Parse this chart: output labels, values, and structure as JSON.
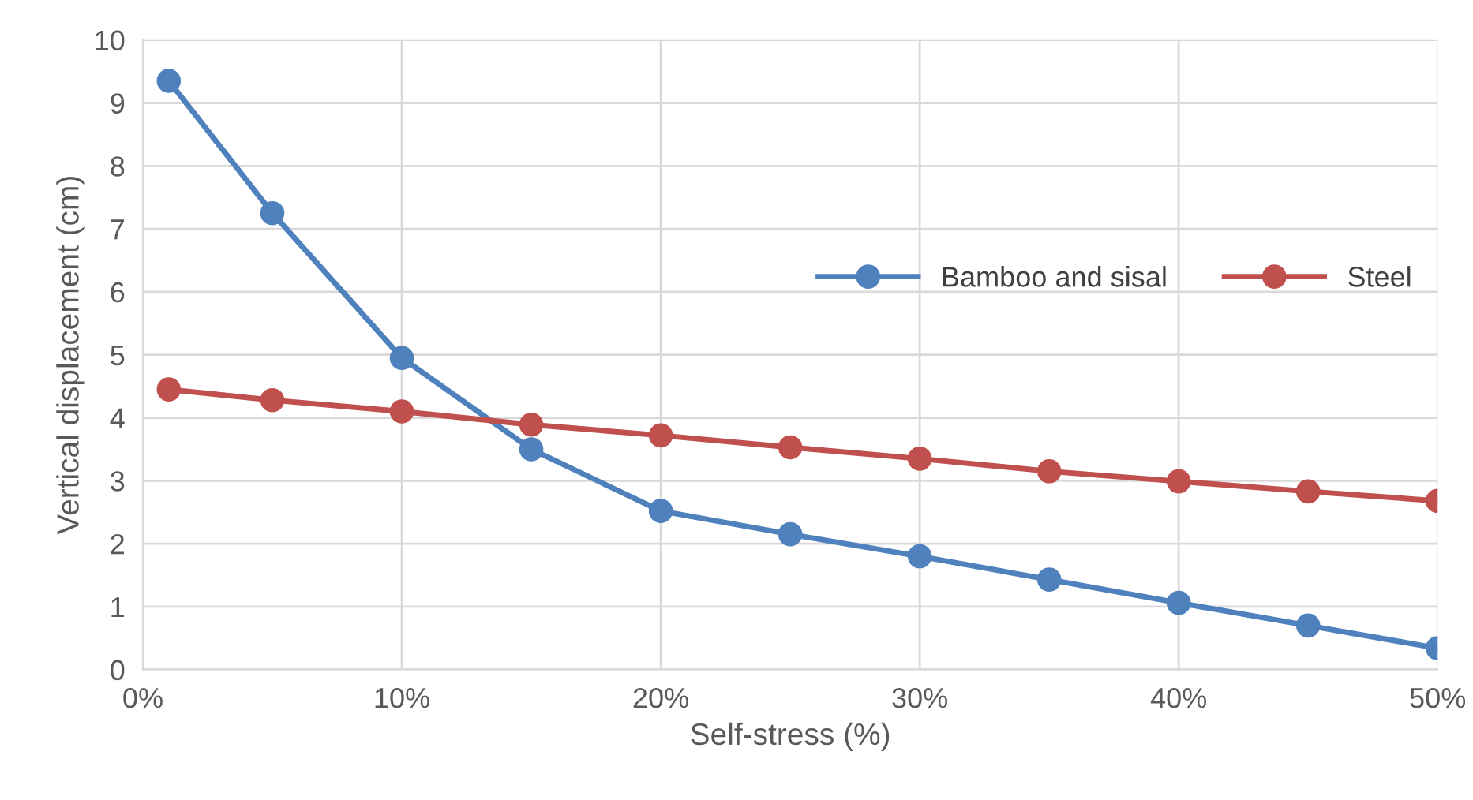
{
  "chart_data": {
    "type": "line",
    "xlabel": "Self-stress (%)",
    "ylabel": "Vertical displacement (cm)",
    "x": [
      1,
      5,
      10,
      15,
      20,
      25,
      30,
      35,
      40,
      45,
      50
    ],
    "series": [
      {
        "name": "Bamboo and sisal",
        "color": "#4f81bd",
        "values": [
          9.35,
          7.25,
          4.95,
          3.5,
          2.52,
          2.15,
          1.8,
          1.43,
          1.06,
          0.7,
          0.34
        ]
      },
      {
        "name": "Steel",
        "color": "#c0504d",
        "values": [
          4.45,
          4.28,
          4.1,
          3.89,
          3.72,
          3.53,
          3.35,
          3.15,
          2.99,
          2.83,
          2.68
        ]
      }
    ],
    "xlim": [
      0,
      50
    ],
    "xticks": [
      {
        "value": 0,
        "label": "0%"
      },
      {
        "value": 10,
        "label": "10%"
      },
      {
        "value": 20,
        "label": "20%"
      },
      {
        "value": 30,
        "label": "30%"
      },
      {
        "value": 40,
        "label": "40%"
      },
      {
        "value": 50,
        "label": "50%"
      }
    ],
    "ylim": [
      0,
      10
    ],
    "yticks": [
      0,
      1,
      2,
      3,
      4,
      5,
      6,
      7,
      8,
      9,
      10
    ],
    "grid": true,
    "legend": "right",
    "marker": "circle",
    "line_style": "solid"
  }
}
